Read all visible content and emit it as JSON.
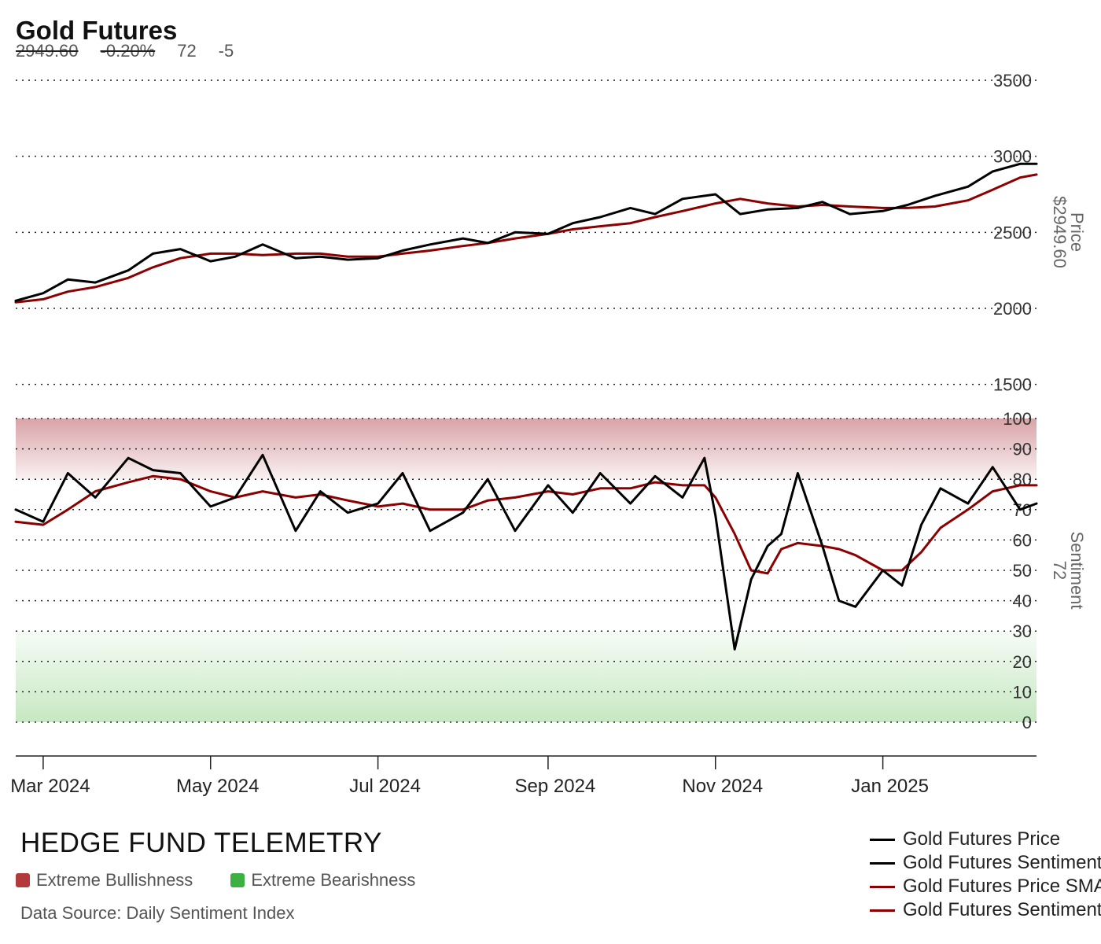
{
  "header": {
    "title": "Gold Futures",
    "price": "2949.60",
    "change_pct": "-0.20%",
    "sentiment": "72",
    "sentiment_change": "-5"
  },
  "footer": {
    "brand": "HEDGE FUND TELEMETRY",
    "zones": [
      {
        "label": "Extreme Bullishness",
        "color": "#b33a3a"
      },
      {
        "label": "Extreme Bearishness",
        "color": "#3cb043"
      }
    ],
    "source": "Data Source: Daily Sentiment Index"
  },
  "colors": {
    "price_line": "#000000",
    "sma_line": "#8b0000",
    "zone_bull": "#d9a3a8",
    "zone_bear": "#c6e8c2"
  },
  "chart_data": [
    {
      "type": "line",
      "panel": "price",
      "title": "Gold Futures",
      "ylabel": "Price",
      "last_value_label": "$2949.60",
      "ylim": [
        1500,
        3500
      ],
      "yticks": [
        1500,
        2000,
        2500,
        3000,
        3500
      ],
      "xticks": [
        "Mar 2024",
        "May 2024",
        "Jul 2024",
        "Sep 2024",
        "Nov 2024",
        "Jan 2025"
      ],
      "grid": true,
      "legend_position": "bottom-right",
      "series": [
        {
          "name": "Gold Futures Price",
          "color": "#000000",
          "x": [
            "2024-02-20",
            "2024-03-01",
            "2024-03-10",
            "2024-03-20",
            "2024-04-01",
            "2024-04-10",
            "2024-04-20",
            "2024-05-01",
            "2024-05-10",
            "2024-05-20",
            "2024-06-01",
            "2024-06-10",
            "2024-06-20",
            "2024-07-01",
            "2024-07-10",
            "2024-07-20",
            "2024-08-01",
            "2024-08-10",
            "2024-08-20",
            "2024-09-01",
            "2024-09-10",
            "2024-09-20",
            "2024-10-01",
            "2024-10-10",
            "2024-10-20",
            "2024-11-01",
            "2024-11-10",
            "2024-11-20",
            "2024-12-01",
            "2024-12-10",
            "2024-12-20",
            "2025-01-01",
            "2025-01-10",
            "2025-01-20",
            "2025-02-01",
            "2025-02-10",
            "2025-02-20",
            "2025-02-26"
          ],
          "values": [
            2050,
            2100,
            2190,
            2170,
            2250,
            2360,
            2390,
            2310,
            2340,
            2420,
            2330,
            2340,
            2320,
            2330,
            2380,
            2420,
            2460,
            2430,
            2500,
            2490,
            2560,
            2600,
            2660,
            2620,
            2720,
            2750,
            2620,
            2650,
            2660,
            2700,
            2620,
            2640,
            2680,
            2740,
            2800,
            2900,
            2950,
            2950
          ]
        },
        {
          "name": "Gold Futures Price SMA",
          "color": "#8b0000",
          "x": [
            "2024-02-20",
            "2024-03-01",
            "2024-03-10",
            "2024-03-20",
            "2024-04-01",
            "2024-04-10",
            "2024-04-20",
            "2024-05-01",
            "2024-05-10",
            "2024-05-20",
            "2024-06-01",
            "2024-06-10",
            "2024-06-20",
            "2024-07-01",
            "2024-07-10",
            "2024-07-20",
            "2024-08-01",
            "2024-08-10",
            "2024-08-20",
            "2024-09-01",
            "2024-09-10",
            "2024-09-20",
            "2024-10-01",
            "2024-10-10",
            "2024-10-20",
            "2024-11-01",
            "2024-11-10",
            "2024-11-20",
            "2024-12-01",
            "2024-12-10",
            "2024-12-20",
            "2025-01-01",
            "2025-01-10",
            "2025-01-20",
            "2025-02-01",
            "2025-02-10",
            "2025-02-20",
            "2025-02-26"
          ],
          "values": [
            2040,
            2060,
            2110,
            2140,
            2200,
            2270,
            2330,
            2360,
            2360,
            2350,
            2360,
            2360,
            2340,
            2340,
            2360,
            2380,
            2410,
            2430,
            2460,
            2490,
            2520,
            2540,
            2560,
            2600,
            2640,
            2690,
            2720,
            2690,
            2670,
            2680,
            2670,
            2660,
            2660,
            2670,
            2710,
            2780,
            2860,
            2880
          ]
        }
      ]
    },
    {
      "type": "line",
      "panel": "sentiment",
      "ylabel": "Sentiment",
      "last_value_label": "72",
      "ylim": [
        0,
        100
      ],
      "yticks": [
        0,
        10,
        20,
        30,
        40,
        50,
        60,
        70,
        80,
        90,
        100
      ],
      "bands": [
        {
          "label": "Extreme Bullishness",
          "range": [
            80,
            100
          ]
        },
        {
          "label": "Extreme Bearishness",
          "range": [
            0,
            30
          ]
        }
      ],
      "grid": true,
      "series": [
        {
          "name": "Gold Futures Sentiment",
          "color": "#000000",
          "x": [
            "2024-02-20",
            "2024-03-01",
            "2024-03-10",
            "2024-03-20",
            "2024-04-01",
            "2024-04-10",
            "2024-04-20",
            "2024-05-01",
            "2024-05-10",
            "2024-05-20",
            "2024-06-01",
            "2024-06-10",
            "2024-06-20",
            "2024-07-01",
            "2024-07-10",
            "2024-07-20",
            "2024-08-01",
            "2024-08-10",
            "2024-08-20",
            "2024-09-01",
            "2024-09-10",
            "2024-09-20",
            "2024-10-01",
            "2024-10-10",
            "2024-10-20",
            "2024-10-28",
            "2024-11-01",
            "2024-11-08",
            "2024-11-14",
            "2024-11-20",
            "2024-11-25",
            "2024-12-01",
            "2024-12-10",
            "2024-12-16",
            "2024-12-22",
            "2025-01-01",
            "2025-01-08",
            "2025-01-15",
            "2025-01-22",
            "2025-02-01",
            "2025-02-10",
            "2025-02-20",
            "2025-02-26"
          ],
          "values": [
            70,
            66,
            82,
            74,
            87,
            83,
            82,
            71,
            74,
            88,
            63,
            76,
            69,
            72,
            82,
            63,
            69,
            80,
            63,
            78,
            69,
            82,
            72,
            81,
            74,
            87,
            68,
            24,
            47,
            58,
            62,
            82,
            58,
            40,
            38,
            50,
            45,
            65,
            77,
            72,
            84,
            70,
            72
          ]
        },
        {
          "name": "Gold Futures Sentiment SMA",
          "color": "#8b0000",
          "x": [
            "2024-02-20",
            "2024-03-01",
            "2024-03-10",
            "2024-03-20",
            "2024-04-01",
            "2024-04-10",
            "2024-04-20",
            "2024-05-01",
            "2024-05-10",
            "2024-05-20",
            "2024-06-01",
            "2024-06-10",
            "2024-06-20",
            "2024-07-01",
            "2024-07-10",
            "2024-07-20",
            "2024-08-01",
            "2024-08-10",
            "2024-08-20",
            "2024-09-01",
            "2024-09-10",
            "2024-09-20",
            "2024-10-01",
            "2024-10-10",
            "2024-10-20",
            "2024-10-28",
            "2024-11-01",
            "2024-11-08",
            "2024-11-14",
            "2024-11-20",
            "2024-11-25",
            "2024-12-01",
            "2024-12-10",
            "2024-12-16",
            "2024-12-22",
            "2025-01-01",
            "2025-01-08",
            "2025-01-15",
            "2025-01-22",
            "2025-02-01",
            "2025-02-10",
            "2025-02-20",
            "2025-02-26"
          ],
          "values": [
            66,
            65,
            70,
            76,
            79,
            81,
            80,
            76,
            74,
            76,
            74,
            75,
            73,
            71,
            72,
            70,
            70,
            73,
            74,
            76,
            75,
            77,
            77,
            79,
            78,
            78,
            74,
            62,
            50,
            49,
            57,
            59,
            58,
            57,
            55,
            50,
            50,
            56,
            64,
            70,
            76,
            78,
            78
          ]
        }
      ]
    }
  ]
}
